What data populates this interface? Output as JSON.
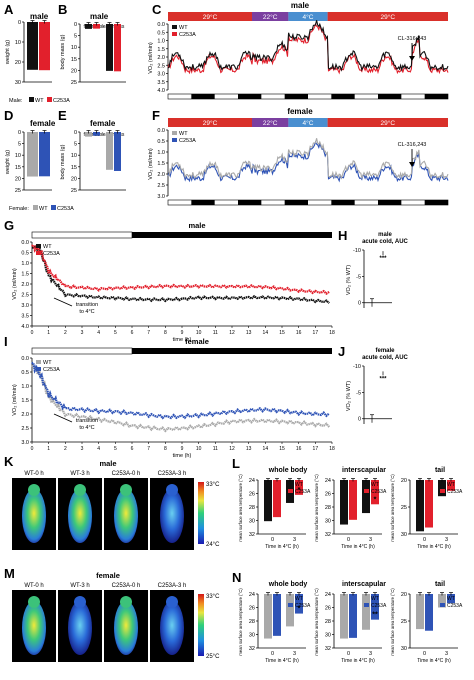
{
  "panels": {
    "A": {
      "letter": "A",
      "title": "male",
      "ylabel": "weight (g)",
      "yticks": [
        "0",
        "10",
        "20",
        "30"
      ],
      "legend_prefix": "Male:",
      "legend": [
        "WT",
        "C253A"
      ]
    },
    "B": {
      "letter": "B",
      "title": "male",
      "ylabel": "body mass (g)",
      "yticks": [
        "0",
        "5",
        "10",
        "15",
        "20",
        "25"
      ],
      "cat_labels": [
        "fat mass",
        "lean mass"
      ]
    },
    "C": {
      "letter": "C",
      "title": "male",
      "ylabel": "VO₂ (ml/min)",
      "yticks": [
        "0.0",
        "0.5",
        "1.0",
        "1.5",
        "2.0",
        "2.5",
        "3.0",
        "3.5",
        "4.0"
      ],
      "temp_bar": [
        "29°C",
        "22°C",
        "4°C",
        "29°C"
      ],
      "legend": [
        "WT",
        "C253A"
      ],
      "annotation": "CL-316,243"
    },
    "D": {
      "letter": "D",
      "title": "female",
      "ylabel": "weight (g)",
      "yticks": [
        "0",
        "5",
        "10",
        "15",
        "20",
        "25"
      ],
      "legend_prefix": "Female:",
      "legend": [
        "WT",
        "C253A"
      ]
    },
    "E": {
      "letter": "E",
      "title": "female",
      "ylabel": "body mass (g)",
      "yticks": [
        "0",
        "5",
        "10",
        "15",
        "20",
        "25"
      ],
      "cat_labels": [
        "fat mass",
        "lean mass"
      ]
    },
    "F": {
      "letter": "F",
      "title": "female",
      "ylabel": "VO₂ (ml/min)",
      "yticks": [
        "0.0",
        "0.5",
        "1.0",
        "1.5",
        "2.0",
        "2.5",
        "3.0"
      ],
      "temp_bar": [
        "29°C",
        "22°C",
        "4°C",
        "29°C"
      ],
      "legend": [
        "WT",
        "C253A"
      ],
      "annotation": "CL-316,243"
    },
    "G": {
      "letter": "G",
      "title": "male",
      "ylabel": "VO₂ (ml/min)",
      "xlabel": "time (h)",
      "yticks": [
        "0.0",
        "0.5",
        "1.0",
        "1.5",
        "2.0",
        "2.5",
        "3.0",
        "3.5",
        "4.0"
      ],
      "xticks": [
        "0",
        "1",
        "2",
        "3",
        "4",
        "5",
        "6",
        "7",
        "8",
        "9",
        "10",
        "11",
        "12",
        "13",
        "14",
        "15",
        "16",
        "17",
        "18"
      ],
      "legend": [
        "WT",
        "C253A"
      ],
      "annotation": "transition to 4°C"
    },
    "H": {
      "letter": "H",
      "title": "male",
      "subtitle": "acute cold, AUC",
      "ylabel": "VO₂ (% WT)",
      "yticks": [
        "0",
        "-5",
        "-10"
      ],
      "sig": "***"
    },
    "I": {
      "letter": "I",
      "title": "female",
      "ylabel": "VO₂ (ml/min)",
      "xlabel": "time (h)",
      "yticks": [
        "0.0",
        "0.5",
        "1.0",
        "1.5",
        "2.0",
        "2.5",
        "3.0"
      ],
      "xticks": [
        "0",
        "1",
        "2",
        "3",
        "4",
        "5",
        "6",
        "7",
        "8",
        "9",
        "10",
        "11",
        "12",
        "13",
        "14",
        "15",
        "16",
        "17",
        "18"
      ],
      "legend": [
        "WT",
        "C253A"
      ],
      "annotation": "transition to 4°C"
    },
    "J": {
      "letter": "J",
      "title": "female",
      "subtitle": "acute cold, AUC",
      "ylabel": "VO₂ (% WT)",
      "yticks": [
        "0",
        "-5",
        "-10"
      ],
      "sig": "***"
    },
    "K": {
      "letter": "K",
      "title": "male",
      "images": [
        "WT-0 h",
        "WT-3 h",
        "C253A-0 h",
        "C253A-3 h"
      ],
      "scale_top": "33°C",
      "scale_bottom": "24°C"
    },
    "L": {
      "letter": "L",
      "ylabel": "mean surface area temperature (°C)",
      "xlabel": "Time in 4°C (h)",
      "legend": [
        "WT",
        "C253A"
      ],
      "subpanels": [
        {
          "title": "whole body",
          "yticks": [
            "24",
            "26",
            "28",
            "30",
            "32"
          ],
          "xticks": [
            "0",
            "3"
          ],
          "sig": "*"
        },
        {
          "title": "interscapular",
          "yticks": [
            "24",
            "26",
            "28",
            "30",
            "32"
          ],
          "xticks": [
            "0",
            "3"
          ],
          "sig": "*"
        },
        {
          "title": "tail",
          "yticks": [
            "20",
            "25",
            "30"
          ],
          "xticks": [
            "0",
            "3"
          ],
          "sig": ""
        }
      ]
    },
    "M": {
      "letter": "M",
      "title": "female",
      "images": [
        "WT-0 h",
        "WT-3 h",
        "C253A-0 h",
        "C253A-3 h"
      ],
      "scale_top": "33°C",
      "scale_bottom": "25°C"
    },
    "N": {
      "letter": "N",
      "ylabel": "mean surface area temperature (°C)",
      "xlabel": "Time in 4°C (h)",
      "legend": [
        "WT",
        "C253A"
      ],
      "subpanels": [
        {
          "title": "whole body",
          "yticks": [
            "24",
            "26",
            "28",
            "30",
            "32"
          ],
          "xticks": [
            "0",
            "3"
          ],
          "sig": "*"
        },
        {
          "title": "interscapular",
          "yticks": [
            "24",
            "26",
            "28",
            "30",
            "32"
          ],
          "xticks": [
            "0",
            "3"
          ],
          "sig": "**"
        },
        {
          "title": "tail",
          "yticks": [
            "20",
            "25",
            "30"
          ],
          "xticks": [
            "0",
            "3"
          ],
          "sig": ""
        }
      ]
    }
  },
  "colors": {
    "wt_male": "#111111",
    "mut_male": "#e2202c",
    "wt_female": "#a9a9a9",
    "mut_female": "#2e53b6",
    "temp29": "#d9302a",
    "temp22": "#7b3fa0",
    "temp4": "#4a8fd0"
  },
  "chart_data": [
    {
      "panel": "A",
      "type": "bar",
      "categories": [
        "WT",
        "C253A"
      ],
      "values": [
        23.9,
        24.1
      ],
      "ylim": [
        0,
        30
      ]
    },
    {
      "panel": "B",
      "type": "bar",
      "categories": [
        "fat mass",
        "lean mass"
      ],
      "series": [
        {
          "name": "WT",
          "values": [
            2.1,
            20.2
          ]
        },
        {
          "name": "C253A",
          "values": [
            2.0,
            20.4
          ]
        }
      ],
      "ylim": [
        0,
        25
      ]
    },
    {
      "panel": "D",
      "type": "bar",
      "categories": [
        "WT",
        "C253A"
      ],
      "values": [
        19.2,
        19.1
      ],
      "ylim": [
        0,
        25
      ]
    },
    {
      "panel": "E",
      "type": "bar",
      "categories": [
        "fat mass",
        "lean mass"
      ],
      "series": [
        {
          "name": "WT",
          "values": [
            2.0,
            16.3
          ]
        },
        {
          "name": "C253A",
          "values": [
            1.6,
            16.8
          ]
        }
      ],
      "ylim": [
        0,
        25
      ]
    },
    {
      "panel": "H",
      "type": "bar",
      "categories": [
        "WT",
        "C253A"
      ],
      "values": [
        0,
        -9.4
      ],
      "ylim": [
        -10,
        1
      ]
    },
    {
      "panel": "J",
      "type": "bar",
      "categories": [
        "WT",
        "C253A"
      ],
      "values": [
        0,
        -8.6
      ],
      "ylim": [
        -10,
        1
      ]
    },
    {
      "panel": "L-whole body",
      "type": "bar",
      "categories": [
        "0",
        "3"
      ],
      "series": [
        {
          "name": "WT",
          "values": [
            30.1,
            27.4
          ]
        },
        {
          "name": "C253A",
          "values": [
            29.5,
            26.2
          ]
        }
      ],
      "ylim": [
        24,
        32
      ]
    },
    {
      "panel": "L-interscapular",
      "type": "bar",
      "categories": [
        "0",
        "3"
      ],
      "series": [
        {
          "name": "WT",
          "values": [
            30.6,
            28.9
          ]
        },
        {
          "name": "C253A",
          "values": [
            29.9,
            27.6
          ]
        }
      ],
      "ylim": [
        24,
        32
      ]
    },
    {
      "panel": "L-tail",
      "type": "bar",
      "categories": [
        "0",
        "3"
      ],
      "series": [
        {
          "name": "WT",
          "values": [
            29.5,
            23.0
          ]
        },
        {
          "name": "C253A",
          "values": [
            28.8,
            22.0
          ]
        }
      ],
      "ylim": [
        20,
        30
      ]
    },
    {
      "panel": "N-whole body",
      "type": "bar",
      "categories": [
        "0",
        "3"
      ],
      "series": [
        {
          "name": "WT",
          "values": [
            30.6,
            28.8
          ]
        },
        {
          "name": "C253A",
          "values": [
            30.2,
            26.9
          ]
        }
      ],
      "ylim": [
        24,
        32
      ]
    },
    {
      "panel": "N-interscapular",
      "type": "bar",
      "categories": [
        "0",
        "3"
      ],
      "series": [
        {
          "name": "WT",
          "values": [
            30.6,
            29.3
          ]
        },
        {
          "name": "C253A",
          "values": [
            30.5,
            27.8
          ]
        }
      ],
      "ylim": [
        24,
        32
      ]
    },
    {
      "panel": "N-tail",
      "type": "bar",
      "categories": [
        "0",
        "3"
      ],
      "series": [
        {
          "name": "WT",
          "values": [
            26.5,
            22.5
          ]
        },
        {
          "name": "C253A",
          "values": [
            26.8,
            21.7
          ]
        }
      ],
      "ylim": [
        20,
        30
      ]
    },
    {
      "panel": "G",
      "type": "line",
      "x_range": [
        0,
        18
      ],
      "ylim": [
        0,
        4
      ],
      "series": [
        {
          "name": "WT",
          "x": [
            0,
            0.5,
            1,
            2,
            4,
            6,
            8,
            10,
            12,
            14,
            16,
            18
          ],
          "y": [
            0.2,
            0.4,
            1.6,
            2.5,
            2.7,
            2.75,
            2.7,
            2.6,
            2.7,
            2.7,
            2.7,
            2.8
          ]
        },
        {
          "name": "C253A",
          "x": [
            0,
            0.5,
            1,
            2,
            4,
            6,
            8,
            10,
            12,
            14,
            16,
            18
          ],
          "y": [
            0.2,
            0.4,
            1.4,
            2.1,
            2.3,
            2.2,
            2.05,
            2.05,
            2.15,
            2.2,
            2.3,
            2.35
          ]
        }
      ]
    },
    {
      "panel": "I",
      "type": "line",
      "x_range": [
        0,
        18
      ],
      "ylim": [
        0,
        3
      ],
      "series": [
        {
          "name": "WT",
          "x": [
            0,
            0.5,
            1,
            2,
            4,
            6,
            8,
            10,
            12,
            14,
            16,
            18
          ],
          "y": [
            0.2,
            0.6,
            1.4,
            2.0,
            2.25,
            2.45,
            2.5,
            2.4,
            2.3,
            2.3,
            2.3,
            2.35
          ]
        },
        {
          "name": "C253A",
          "x": [
            0,
            0.5,
            1,
            2,
            4,
            6,
            8,
            10,
            12,
            14,
            16,
            18
          ],
          "y": [
            0.2,
            0.6,
            1.3,
            1.8,
            1.95,
            2.0,
            2.05,
            2.0,
            1.95,
            1.9,
            1.95,
            1.95
          ]
        }
      ]
    }
  ]
}
